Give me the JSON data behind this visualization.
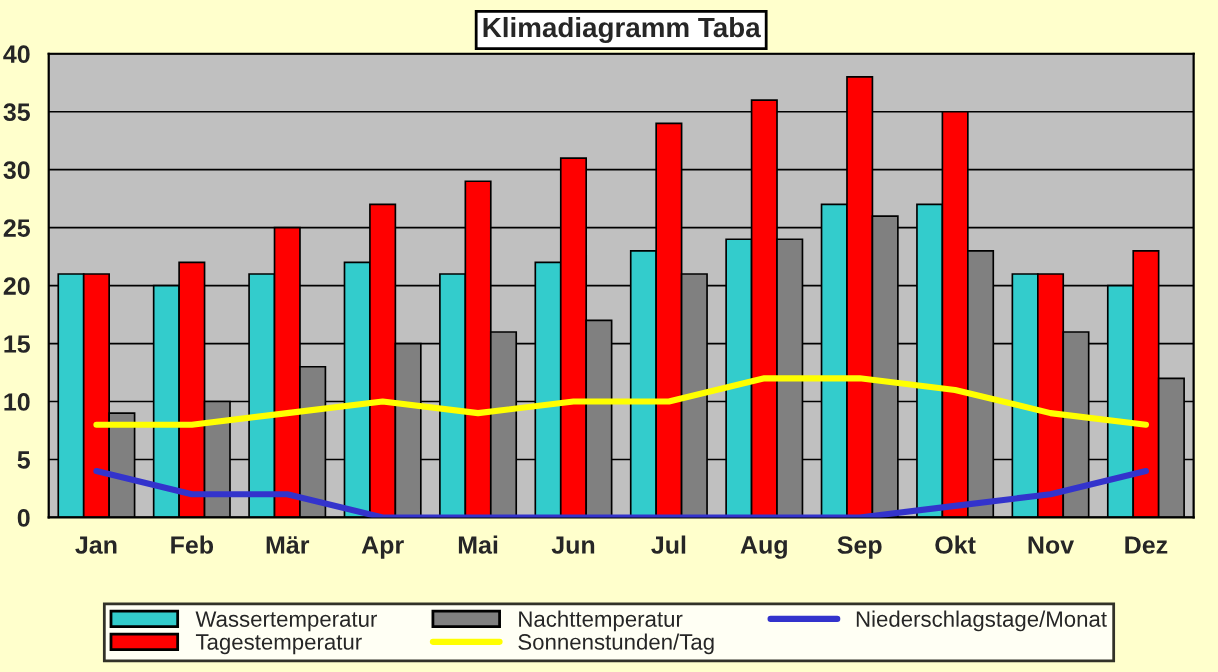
{
  "chart_data": {
    "type": "bar",
    "title": "Klimadiagramm Taba",
    "categories": [
      "Jan",
      "Feb",
      "Mär",
      "Apr",
      "Mai",
      "Jun",
      "Jul",
      "Aug",
      "Sep",
      "Okt",
      "Nov",
      "Dez"
    ],
    "series": [
      {
        "name": "Wassertemperatur",
        "color": "#33cccc",
        "values": [
          21,
          20,
          21,
          22,
          21,
          22,
          23,
          24,
          27,
          27,
          21,
          20
        ]
      },
      {
        "name": "Tagestemperatur",
        "color": "#ff0000",
        "values": [
          21,
          22,
          25,
          27,
          29,
          31,
          34,
          36,
          38,
          35,
          21,
          23
        ]
      },
      {
        "name": "Nachttemperatur",
        "color": "#808080",
        "values": [
          9,
          10,
          13,
          15,
          16,
          17,
          21,
          24,
          26,
          23,
          16,
          12
        ]
      },
      {
        "name": "Sonnenstunden/Tag",
        "type": "line",
        "color": "#ffff00",
        "values": [
          8,
          8,
          9,
          10,
          9,
          10,
          10,
          12,
          12,
          11,
          9,
          8
        ]
      },
      {
        "name": "Niederschlagstage/Monat",
        "type": "line",
        "color": "#3333cc",
        "values": [
          4,
          2,
          2,
          0,
          0,
          0,
          0,
          0,
          0,
          1,
          2,
          4
        ]
      }
    ],
    "ylim": [
      0,
      40
    ],
    "yticks": [
      0,
      5,
      10,
      15,
      20,
      25,
      30,
      35,
      40
    ],
    "grid": "y",
    "legend": "bottom"
  }
}
